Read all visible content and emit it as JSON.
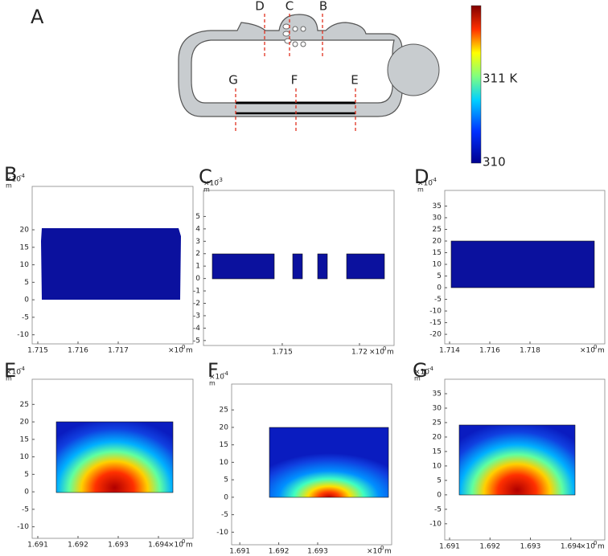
{
  "figure": {
    "overview": {
      "label": "A",
      "sections": [
        "D",
        "C",
        "B",
        "G",
        "F",
        "E"
      ],
      "colorbar": {
        "ticks": [
          "311 K",
          "310"
        ]
      }
    },
    "panels": [
      {
        "label": "B",
        "y_unit": "×10",
        "y_exp": "-4",
        "y_name": "m",
        "x_unit": "×10",
        "x_exp": "0",
        "x_name": "m",
        "ylim": [
          -12.6,
          32.4
        ],
        "yticks": [
          20,
          15,
          10,
          5,
          0,
          -5,
          -10
        ],
        "xlim": [
          1.71486,
          1.71886
        ],
        "xticks": [
          1.715,
          1.716,
          1.717
        ]
      },
      {
        "label": "C",
        "y_unit": "×10",
        "y_exp": "-3",
        "y_name": "m",
        "x_unit": "×10",
        "x_exp": "0",
        "x_name": "m",
        "ylim": [
          -5.4,
          7.1
        ],
        "yticks": [
          5,
          4,
          3,
          2,
          1,
          0,
          -1,
          -2,
          -3,
          -4,
          -5
        ],
        "xlim": [
          1.7099,
          1.72224
        ],
        "xticks": [
          1.715,
          1.72
        ]
      },
      {
        "label": "D",
        "y_unit": "×10",
        "y_exp": "-4",
        "y_name": "m",
        "x_unit": "×10",
        "x_exp": "0",
        "x_name": "m",
        "ylim": [
          -24.1,
          41.7
        ],
        "yticks": [
          35,
          30,
          25,
          20,
          15,
          10,
          5,
          0,
          -5,
          -10,
          -15,
          -20
        ],
        "xlim": [
          1.71376,
          1.72172
        ],
        "xticks": [
          1.714,
          1.716,
          1.718
        ]
      },
      {
        "label": "E",
        "y_unit": "×10",
        "y_exp": "-4",
        "y_name": "m",
        "x_unit": "×10",
        "x_exp": "0",
        "x_name": "m",
        "ylim": [
          -13.3,
          32.2
        ],
        "yticks": [
          25,
          20,
          15,
          10,
          5,
          0,
          -5,
          -10
        ],
        "xlim": [
          1.69086,
          1.69486
        ],
        "xticks": [
          1.691,
          1.692,
          1.693,
          1.694
        ]
      },
      {
        "label": "F",
        "y_unit": "×10",
        "y_exp": "-4",
        "y_name": "m",
        "x_unit": "×10",
        "x_exp": "0",
        "x_name": "m",
        "ylim": [
          -13.6,
          32.4
        ],
        "yticks": [
          25,
          20,
          15,
          10,
          5,
          0,
          -5,
          -10
        ],
        "xlim": [
          1.69079,
          1.6949
        ],
        "xticks": [
          1.691,
          1.692,
          1.693
        ]
      },
      {
        "label": "G",
        "y_unit": "×10",
        "y_exp": "-4",
        "y_name": "m",
        "x_unit": "×10",
        "x_exp": "0",
        "x_name": "m",
        "ylim": [
          -15.6,
          40
        ],
        "yticks": [
          35,
          30,
          25,
          20,
          15,
          10,
          5,
          0,
          -5,
          -10
        ],
        "xlim": [
          1.69088,
          1.69484
        ],
        "xticks": [
          1.691,
          1.692,
          1.693,
          1.694
        ]
      }
    ]
  }
}
